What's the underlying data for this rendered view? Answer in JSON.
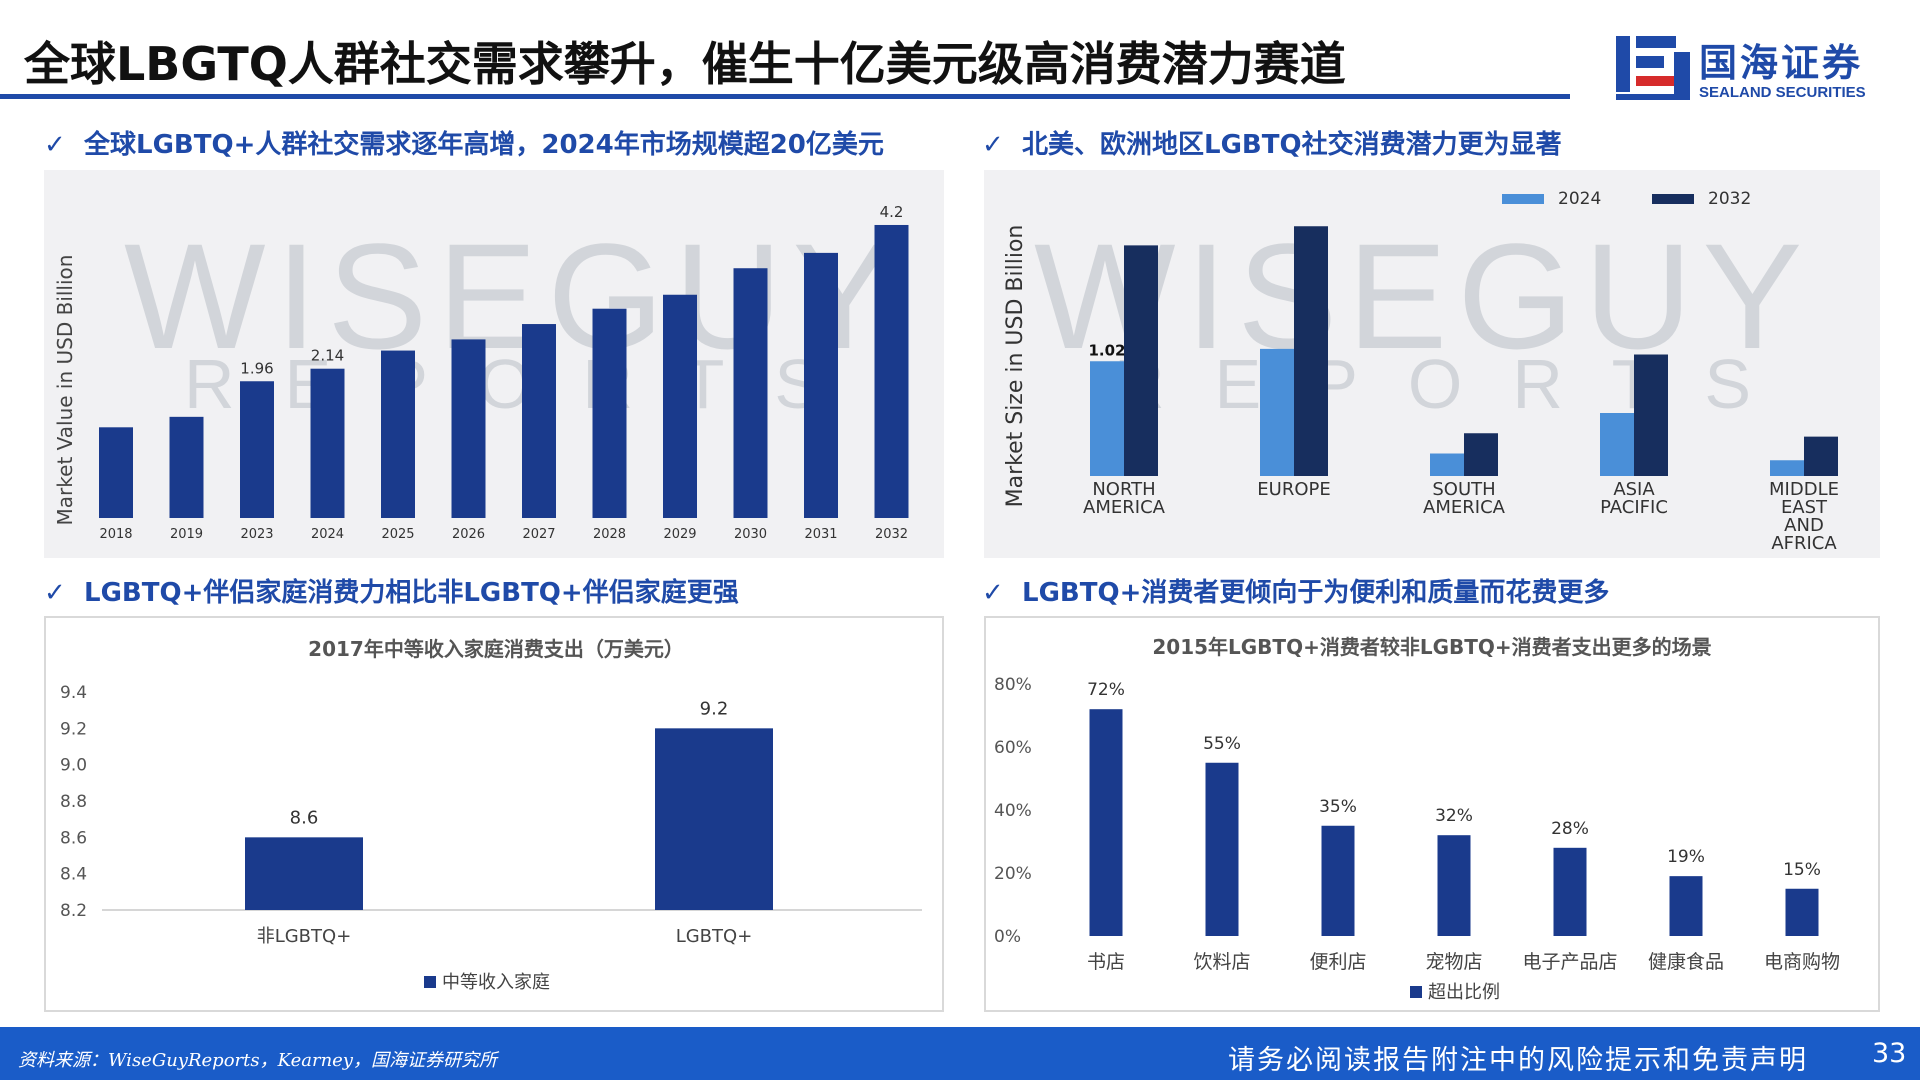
{
  "header": {
    "title": "全球LBGTQ人群社交需求攀升，催生十亿美元级高消费潜力赛道",
    "logo_cn": "国海证券",
    "logo_en": "SEALAND SECURITIES"
  },
  "sections": {
    "s1": "全球LGBTQ+人群社交需求逐年高增，2024年市场规模超20亿美元",
    "s2": "北美、欧洲地区LGBTQ社交消费潜力更为显著",
    "s3": "LGBTQ+伴侣家庭消费力相比非LGBTQ+伴侣家庭更强",
    "s4": "LGBTQ+消费者更倾向于为便利和质量而花费更多",
    "check": "✓"
  },
  "watermark": {
    "main": "WISEGUY",
    "sub": "REPORTS"
  },
  "colors": {
    "navy": "#1a3a8c",
    "light_blue": "#4a8fd8",
    "dark_navy": "#172e5e",
    "accent": "#1f4aa8",
    "footer": "#1a5cc8"
  },
  "chart_data": [
    {
      "type": "bar",
      "ylabel": "Market Value in USD Billion",
      "categories": [
        "2018",
        "2019",
        "2023",
        "2024",
        "2025",
        "2026",
        "2027",
        "2028",
        "2029",
        "2030",
        "2031",
        "2032"
      ],
      "values": [
        1.3,
        1.45,
        1.96,
        2.14,
        2.4,
        2.56,
        2.78,
        3.0,
        3.2,
        3.58,
        3.8,
        4.2
      ],
      "data_labels": {
        "2023": "1.96",
        "2024": "2.14",
        "2032": "4.2"
      },
      "ylim": [
        0,
        4.3
      ],
      "grid": false
    },
    {
      "type": "bar",
      "ylabel": "Market Size in USD Billion",
      "categories": [
        [
          "NORTH",
          "AMERICA"
        ],
        [
          "EUROPE"
        ],
        [
          "SOUTH",
          "AMERICA"
        ],
        [
          "ASIA",
          "PACIFIC"
        ],
        [
          "MIDDLE",
          "EAST",
          "AND",
          "AFRICA"
        ]
      ],
      "series": [
        {
          "name": "2024",
          "values": [
            1.02,
            1.13,
            0.2,
            0.56,
            0.14
          ],
          "color": "#4a8fd8"
        },
        {
          "name": "2032",
          "values": [
            2.05,
            2.22,
            0.38,
            1.08,
            0.35
          ],
          "color": "#172e5e"
        }
      ],
      "data_labels": {
        "NORTH AMERICA 2024": "1.02"
      },
      "legend": "top",
      "ylim": [
        0,
        2.4
      ],
      "grid": false
    },
    {
      "type": "bar",
      "title": "2017年中等收入家庭消费支出（万美元）",
      "categories": [
        "非LGBTQ+",
        "LGBTQ+"
      ],
      "series": [
        {
          "name": "中等收入家庭",
          "values": [
            8.6,
            9.2
          ]
        }
      ],
      "data_labels": [
        "8.6",
        "9.2"
      ],
      "yticks": [
        "9.4",
        "9.2",
        "9.0",
        "8.8",
        "8.6",
        "8.4",
        "8.2"
      ],
      "ylim": [
        8.2,
        9.4
      ],
      "legend": "bottom",
      "grid": false
    },
    {
      "type": "bar",
      "title": "2015年LGBTQ+消费者较非LGBTQ+消费者支出更多的场景",
      "categories": [
        "书店",
        "饮料店",
        "便利店",
        "宠物店",
        "电子产品店",
        "健康食品",
        "电商购物"
      ],
      "series": [
        {
          "name": "超出比例",
          "values": [
            72,
            55,
            35,
            32,
            28,
            19,
            15
          ]
        }
      ],
      "data_labels": [
        "72%",
        "55%",
        "35%",
        "32%",
        "28%",
        "19%",
        "15%"
      ],
      "yticks": [
        "80%",
        "60%",
        "40%",
        "20%",
        "0%"
      ],
      "ylim": [
        0,
        80
      ],
      "legend": "bottom",
      "grid": false
    }
  ],
  "footer": {
    "source": "资料来源：WiseGuyReports，Kearney，国海证券研究所",
    "disclaimer": "请务必阅读报告附注中的风险提示和免责声明",
    "page": "33"
  }
}
